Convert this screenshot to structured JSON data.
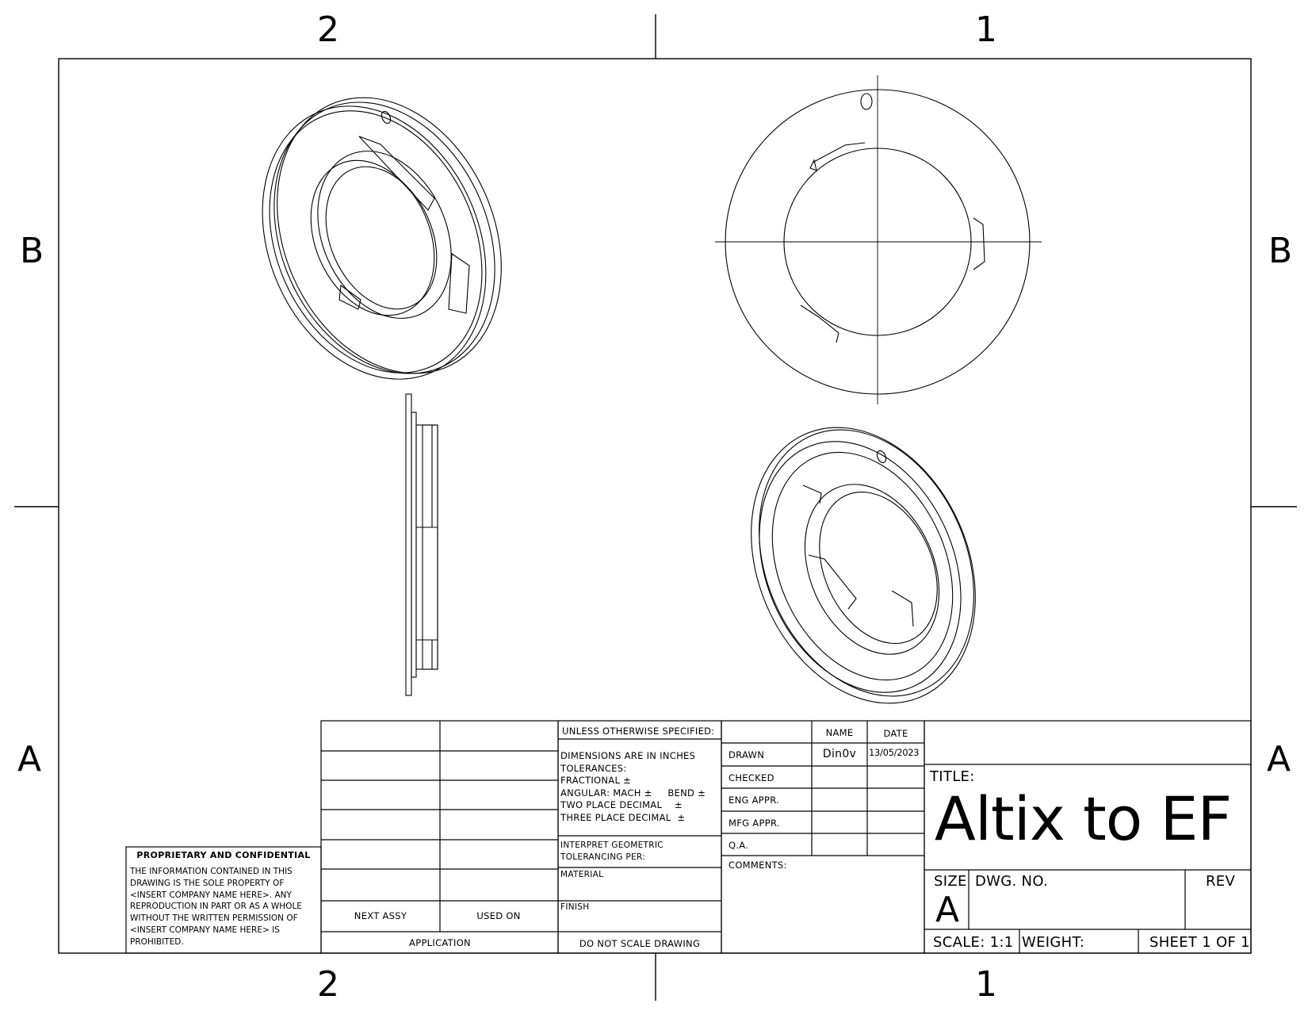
{
  "zones": {
    "top": [
      "2",
      "1"
    ],
    "bottom": [
      "2",
      "1"
    ],
    "left": [
      "B",
      "A"
    ],
    "right": [
      "B",
      "A"
    ]
  },
  "views": [
    {
      "name": "isometric-view-top-left"
    },
    {
      "name": "front-view"
    },
    {
      "name": "side-view"
    },
    {
      "name": "isometric-view-bottom-right"
    }
  ],
  "confidential": {
    "heading": "PROPRIETARY AND CONFIDENTIAL",
    "body": "THE INFORMATION CONTAINED IN THIS DRAWING IS THE SOLE PROPERTY OF <INSERT COMPANY NAME HERE>.  ANY REPRODUCTION IN PART OR AS A WHOLE WITHOUT THE WRITTEN PERMISSION OF <INSERT COMPANY NAME HERE> IS PROHIBITED."
  },
  "application": {
    "next_assy": "NEXT ASSY",
    "used_on": "USED ON",
    "label": "APPLICATION"
  },
  "specs": {
    "unless": "UNLESS OTHERWISE SPECIFIED:",
    "tolerances": "DIMENSIONS ARE IN INCHES\nTOLERANCES:\nFRACTIONAL ±\nANGULAR: MACH ±     BEND ±\nTWO PLACE DECIMAL    ±\nTHREE PLACE DECIMAL  ±",
    "interpret_1": "INTERPRET GEOMETRIC",
    "interpret_2": "TOLERANCING PER:",
    "material": "MATERIAL",
    "finish": "FINISH",
    "do_not_scale": "DO NOT SCALE DRAWING"
  },
  "approvals": {
    "name_header": "NAME",
    "date_header": "DATE",
    "rows": [
      {
        "label": "DRAWN",
        "name": "Din0v",
        "date": "13/05/2023"
      },
      {
        "label": "CHECKED",
        "name": "",
        "date": ""
      },
      {
        "label": "ENG APPR.",
        "name": "",
        "date": ""
      },
      {
        "label": "MFG APPR.",
        "name": "",
        "date": ""
      },
      {
        "label": "Q.A.",
        "name": "",
        "date": ""
      }
    ],
    "comments": "COMMENTS:"
  },
  "title_block": {
    "title_label": "TITLE:",
    "title": "Altix to EF",
    "size_label": "SIZE",
    "size": "A",
    "dwg_no_label": "DWG.  NO.",
    "dwg_no": "",
    "rev_label": "REV",
    "scale": "SCALE: 1:1",
    "weight": "WEIGHT:",
    "sheet": "SHEET 1 OF 1"
  }
}
